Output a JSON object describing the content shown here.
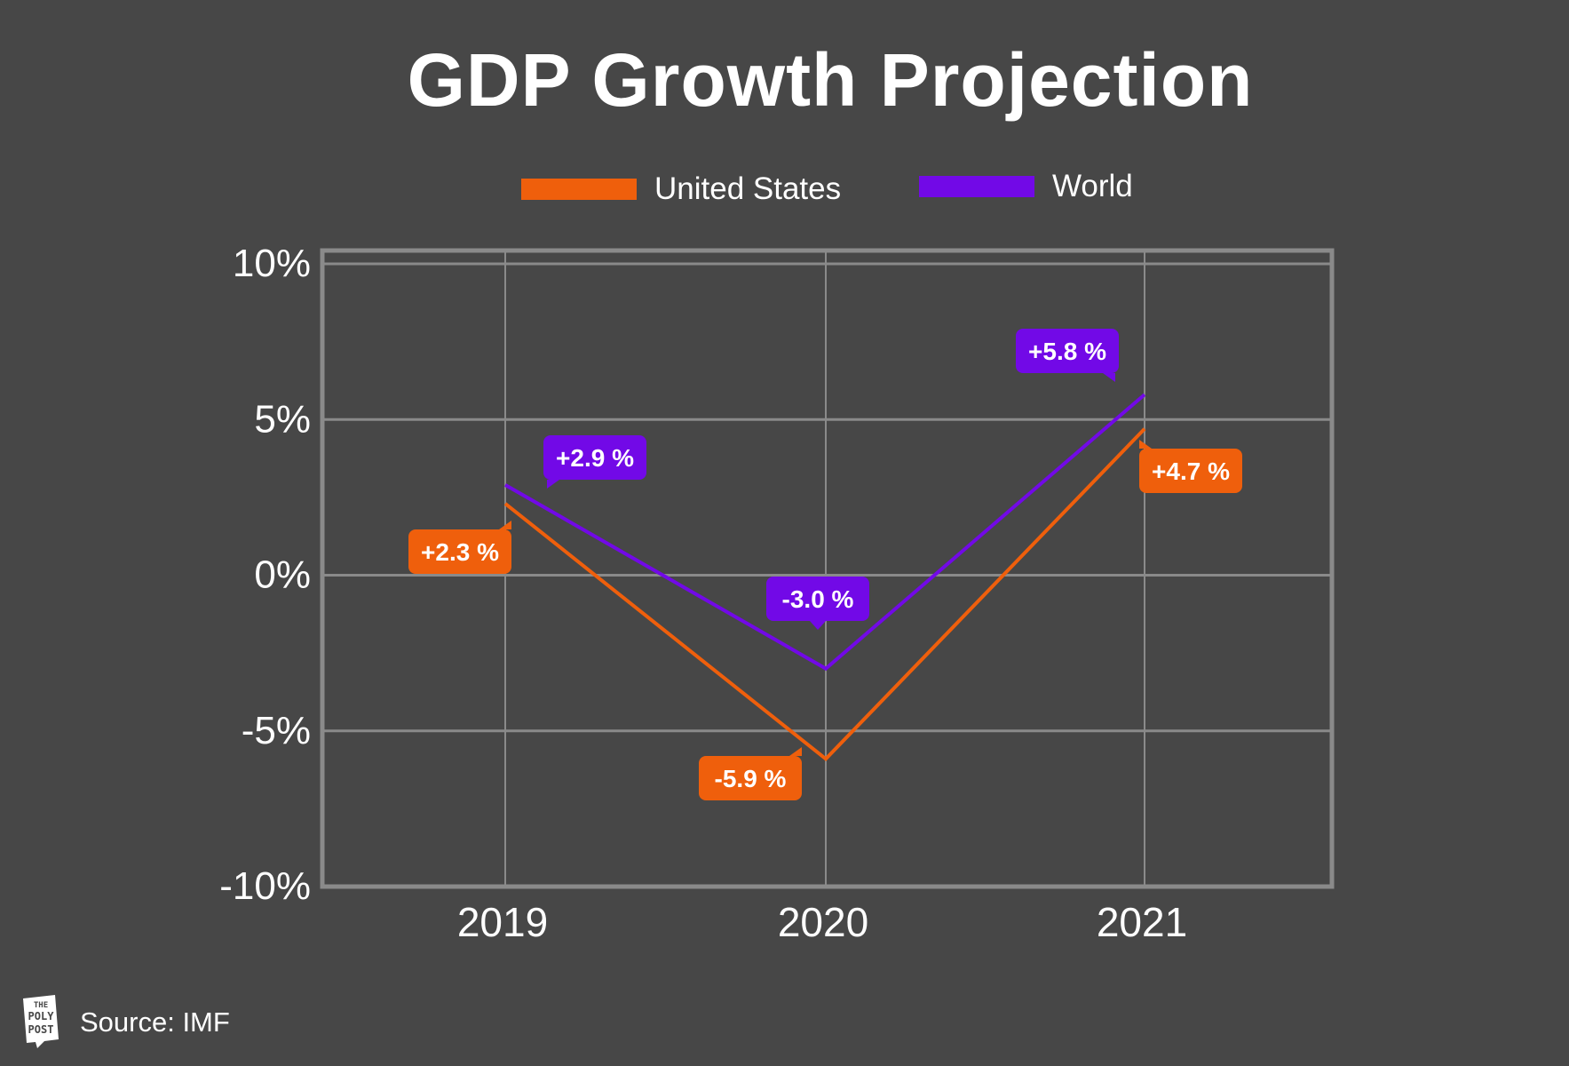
{
  "chart_data": {
    "type": "line",
    "title": "GDP Growth Projection",
    "categories": [
      "2019",
      "2020",
      "2021"
    ],
    "ylim": [
      -10,
      10
    ],
    "yticks": [
      10,
      5,
      0,
      -5,
      -10
    ],
    "ytick_labels": [
      "10%",
      "5%",
      "0%",
      "-5%",
      "-10%"
    ],
    "grid": true,
    "legend_position": "top-center",
    "series": [
      {
        "name": "United States",
        "color": "#ef5f0c",
        "values": [
          2.3,
          -5.9,
          4.7
        ],
        "labels": [
          "+2.3 %",
          "-5.9 %",
          "+4.7 %"
        ]
      },
      {
        "name": "World",
        "color": "#7209e7",
        "values": [
          2.9,
          -3.0,
          5.8
        ],
        "labels": [
          "+2.9 %",
          "-3.0 %",
          "+5.8 %"
        ]
      }
    ]
  },
  "footer": {
    "logo_text": "THE POLY POST",
    "source": "Source: IMF"
  }
}
